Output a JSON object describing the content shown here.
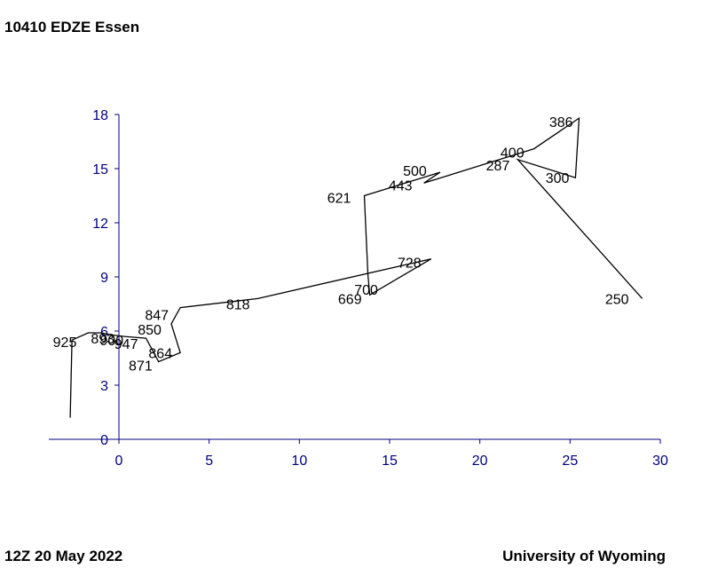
{
  "header": {
    "title": "10410 EDZE Essen"
  },
  "footer": {
    "left": "12Z 20 May 2022",
    "right": "University of Wyoming"
  },
  "colors": {
    "axis": "#000080",
    "line": "#000000"
  },
  "chart_data": {
    "type": "line",
    "title": "10410 EDZE Essen",
    "xlim": [
      -4,
      30
    ],
    "ylim": [
      0,
      18
    ],
    "xticks": [
      0,
      5,
      10,
      15,
      20,
      25,
      30
    ],
    "yticks": [
      0,
      3,
      6,
      9,
      12,
      15,
      18
    ],
    "grid": false,
    "path": [
      {
        "x": -2.7,
        "y": 1.2
      },
      {
        "x": -2.6,
        "y": 5.5
      },
      {
        "x": -1.7,
        "y": 5.9
      },
      {
        "x": -1.0,
        "y": 5.9
      },
      {
        "x": -0.5,
        "y": 5.8
      },
      {
        "x": 0.3,
        "y": 5.7
      },
      {
        "x": 1.5,
        "y": 5.6
      },
      {
        "x": 2.2,
        "y": 4.3
      },
      {
        "x": 3.4,
        "y": 4.8
      },
      {
        "x": 2.9,
        "y": 6.4
      },
      {
        "x": 3.4,
        "y": 7.3
      },
      {
        "x": 7.7,
        "y": 7.8
      },
      {
        "x": 17.3,
        "y": 10.0
      },
      {
        "x": 13.9,
        "y": 8.0
      },
      {
        "x": 13.8,
        "y": 9.1
      },
      {
        "x": 13.6,
        "y": 13.5
      },
      {
        "x": 17.8,
        "y": 14.8
      },
      {
        "x": 16.9,
        "y": 14.2
      },
      {
        "x": 21.4,
        "y": 15.6
      },
      {
        "x": 23.0,
        "y": 16.1
      },
      {
        "x": 25.5,
        "y": 17.8
      },
      {
        "x": 25.3,
        "y": 14.5
      },
      {
        "x": 22.1,
        "y": 15.5
      },
      {
        "x": 29.0,
        "y": 7.8
      }
    ],
    "labels": [
      {
        "text": "925",
        "x": -3.0,
        "y": 5.4
      },
      {
        "text": "893",
        "x": -0.9,
        "y": 5.6
      },
      {
        "text": "900",
        "x": -0.4,
        "y": 5.5
      },
      {
        "text": "947",
        "x": 0.4,
        "y": 5.3
      },
      {
        "text": "850",
        "x": 1.7,
        "y": 6.1
      },
      {
        "text": "847",
        "x": 2.1,
        "y": 6.9
      },
      {
        "text": "871",
        "x": 1.2,
        "y": 4.1
      },
      {
        "text": "864",
        "x": 2.3,
        "y": 4.8
      },
      {
        "text": "818",
        "x": 6.6,
        "y": 7.5
      },
      {
        "text": "669",
        "x": 12.8,
        "y": 7.8
      },
      {
        "text": "700",
        "x": 13.7,
        "y": 8.3
      },
      {
        "text": "728",
        "x": 16.1,
        "y": 9.8
      },
      {
        "text": "621",
        "x": 12.2,
        "y": 13.4
      },
      {
        "text": "443",
        "x": 15.6,
        "y": 14.1
      },
      {
        "text": "500",
        "x": 16.4,
        "y": 14.9
      },
      {
        "text": "287",
        "x": 21.0,
        "y": 15.2
      },
      {
        "text": "400",
        "x": 21.8,
        "y": 15.9
      },
      {
        "text": "300",
        "x": 24.3,
        "y": 14.5
      },
      {
        "text": "386",
        "x": 24.5,
        "y": 17.6
      },
      {
        "text": "250",
        "x": 27.6,
        "y": 7.8
      }
    ]
  }
}
